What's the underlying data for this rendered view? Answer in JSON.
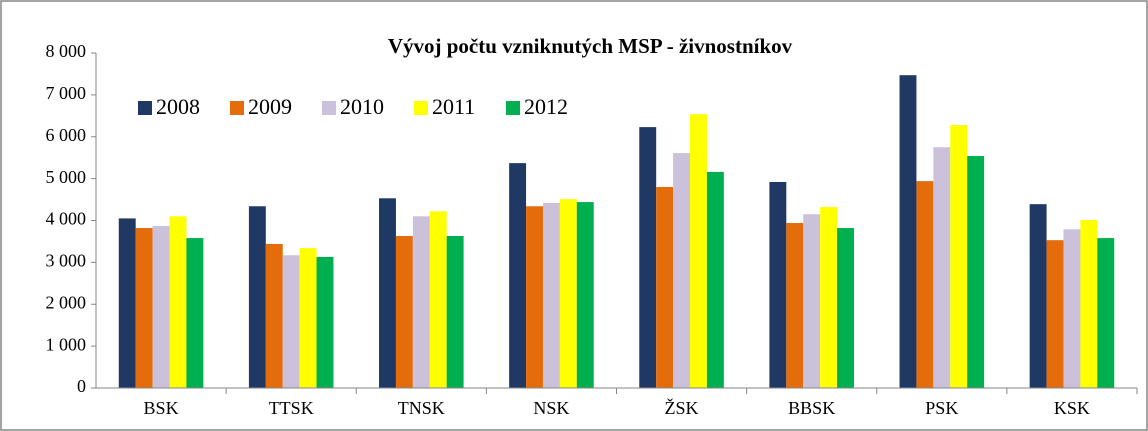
{
  "chart_data": {
    "type": "bar",
    "title": "Vývoj počtu vzniknutých MSP - živnostníkov",
    "categories": [
      "BSK",
      "TTSK",
      "TNSK",
      "NSK",
      "ŽSK",
      "BBSK",
      "PSK",
      "KSK"
    ],
    "series": [
      {
        "name": "2008",
        "color": "#1f3864",
        "values": [
          4050,
          4340,
          4530,
          5370,
          6230,
          4920,
          7470,
          4390
        ]
      },
      {
        "name": "2009",
        "color": "#e46c0a",
        "values": [
          3820,
          3440,
          3630,
          4340,
          4800,
          3940,
          4940,
          3530
        ]
      },
      {
        "name": "2010",
        "color": "#ccc1da",
        "values": [
          3870,
          3170,
          4100,
          4420,
          5610,
          4150,
          5750,
          3790
        ]
      },
      {
        "name": "2011",
        "color": "#ffff00",
        "values": [
          4100,
          3340,
          4220,
          4510,
          6540,
          4320,
          6280,
          4010
        ]
      },
      {
        "name": "2012",
        "color": "#00b050",
        "values": [
          3580,
          3130,
          3630,
          4440,
          5160,
          3820,
          5540,
          3580
        ]
      }
    ],
    "ylim": [
      0,
      8000
    ],
    "yticks": [
      0,
      {
        "value": 1000,
        "label": "1 000"
      },
      {
        "value": 2000,
        "label": "2 000"
      },
      {
        "value": 3000,
        "label": "3 000"
      },
      {
        "value": 4000,
        "label": "4 000"
      },
      {
        "value": 5000,
        "label": "5 000"
      },
      {
        "value": 6000,
        "label": "6 000"
      },
      {
        "value": 7000,
        "label": "7 000"
      },
      {
        "value": 8000,
        "label": "8 000"
      }
    ],
    "grid": false,
    "legend": "top-left"
  }
}
